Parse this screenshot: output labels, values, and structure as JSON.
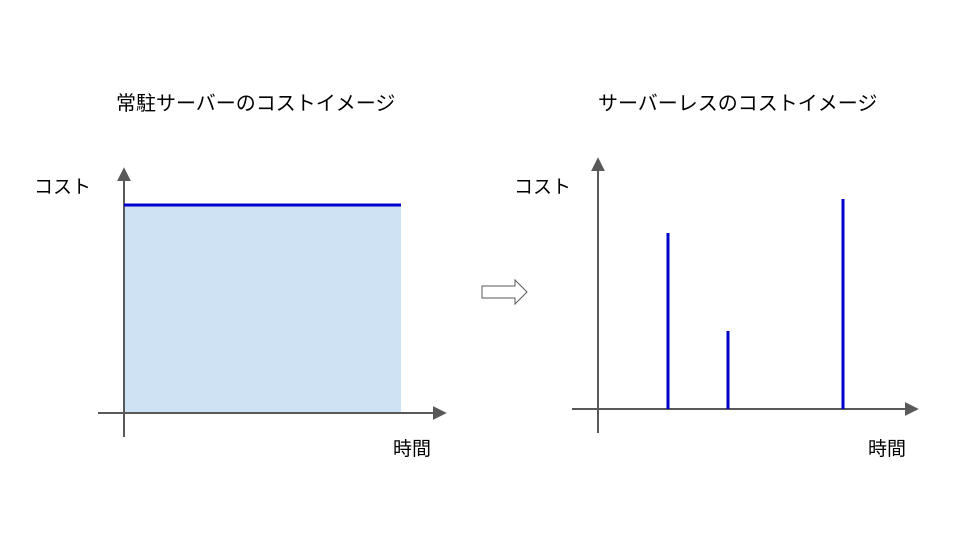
{
  "left_panel": {
    "title": "常駐サーバーのコストイメージ",
    "y_label": "コスト",
    "x_label": "時間"
  },
  "right_panel": {
    "title": "サーバーレスのコストイメージ",
    "y_label": "コスト",
    "x_label": "時間"
  },
  "colors": {
    "axis": "#595959",
    "line": "#0000cc",
    "fill": "#cfe2f3",
    "arrow_outline": "#595959"
  },
  "icons": {
    "transition": "right-arrow-icon"
  }
}
